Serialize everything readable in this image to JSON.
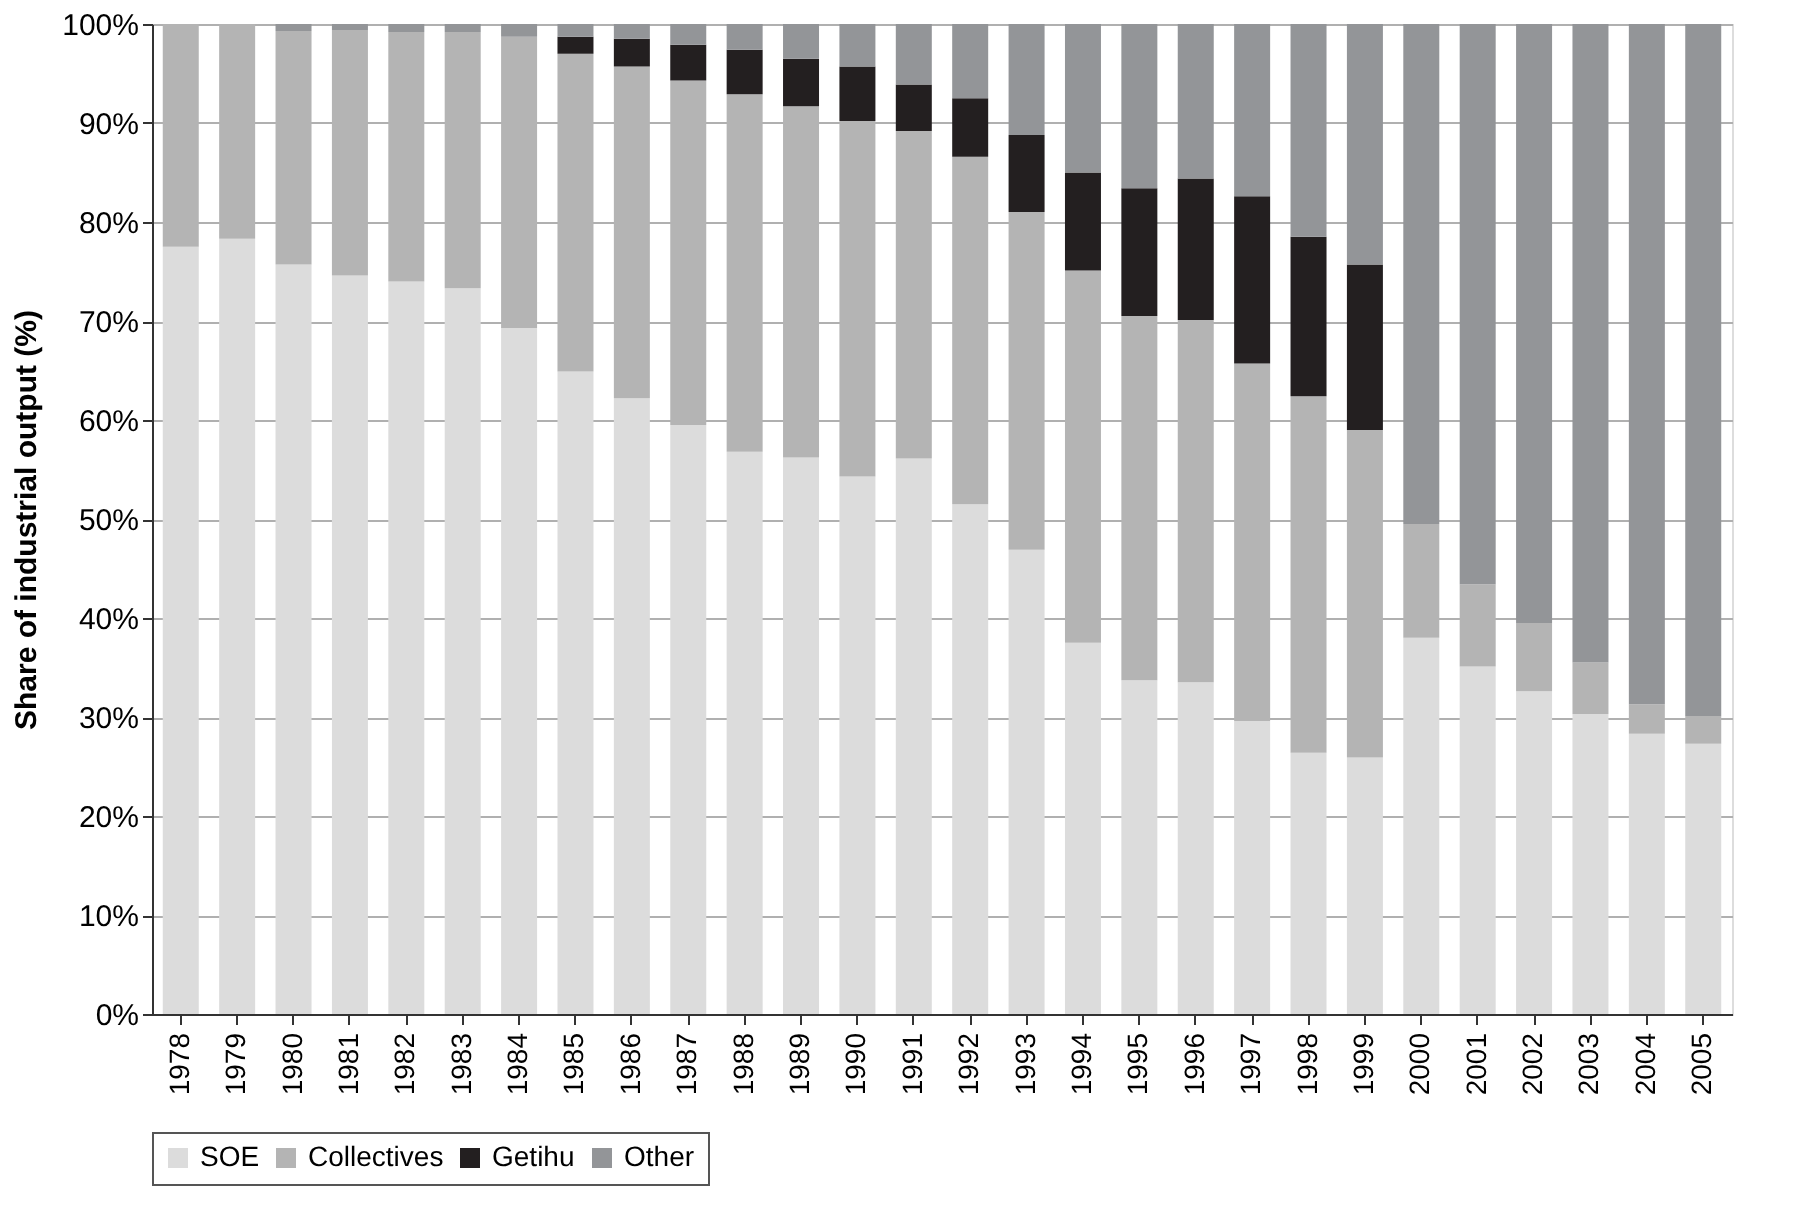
{
  "chart_data": {
    "type": "bar",
    "stacked": true,
    "ylabel": "Share of industrial output (%)",
    "categories": [
      "1978",
      "1979",
      "1980",
      "1981",
      "1982",
      "1983",
      "1984",
      "1985",
      "1986",
      "1987",
      "1988",
      "1989",
      "1990",
      "1991",
      "1992",
      "1993",
      "1994",
      "1995",
      "1996",
      "1997",
      "1998",
      "1999",
      "2000",
      "2001",
      "2002",
      "2003",
      "2004",
      "2005"
    ],
    "series": [
      {
        "name": "SOE",
        "color": "#dcdcdc",
        "values": [
          77.5,
          78.3,
          75.7,
          74.6,
          74.0,
          73.3,
          69.3,
          64.9,
          62.2,
          59.5,
          56.8,
          56.2,
          54.3,
          56.1,
          51.5,
          46.9,
          37.5,
          33.7,
          33.5,
          29.6,
          26.4,
          25.9,
          38.0,
          35.1,
          32.6,
          30.3,
          28.3,
          27.3
        ]
      },
      {
        "name": "Collectives",
        "color": "#b4b4b4",
        "values": [
          22.5,
          21.7,
          23.6,
          24.8,
          25.2,
          25.9,
          29.4,
          32.1,
          33.5,
          34.8,
          36.1,
          35.5,
          35.9,
          33.1,
          35.1,
          34.1,
          37.6,
          36.8,
          36.6,
          36.1,
          36.0,
          33.1,
          11.5,
          8.3,
          6.9,
          5.2,
          3.0,
          2.8
        ]
      },
      {
        "name": "Getihu",
        "color": "#231f20",
        "values": [
          null,
          null,
          null,
          null,
          null,
          null,
          null,
          1.7,
          2.8,
          3.6,
          4.5,
          4.8,
          5.5,
          4.7,
          5.9,
          7.8,
          9.9,
          12.9,
          14.3,
          16.9,
          16.1,
          16.7,
          null,
          null,
          null,
          null,
          null,
          null
        ]
      },
      {
        "name": "Other",
        "color": "#939598",
        "values": [
          null,
          null,
          0.7,
          0.6,
          0.8,
          0.8,
          1.3,
          1.3,
          1.5,
          2.1,
          2.6,
          3.5,
          4.3,
          6.1,
          7.5,
          11.2,
          15.0,
          16.6,
          15.6,
          17.4,
          21.5,
          24.3,
          50.5,
          56.6,
          60.5,
          64.5,
          68.7,
          69.9
        ]
      }
    ],
    "ylim": [
      0,
      100
    ],
    "yticks": [
      {
        "value": 0,
        "label": "0%"
      },
      {
        "value": 10,
        "label": "10%"
      },
      {
        "value": 20,
        "label": "20%"
      },
      {
        "value": 30,
        "label": "30%"
      },
      {
        "value": 40,
        "label": "40%"
      },
      {
        "value": 50,
        "label": "50%"
      },
      {
        "value": 60,
        "label": "60%"
      },
      {
        "value": 70,
        "label": "70%"
      },
      {
        "value": 80,
        "label": "80%"
      },
      {
        "value": 90,
        "label": "90%"
      },
      {
        "value": 100,
        "label": "100%"
      }
    ],
    "grid": "y",
    "legend": "bottom"
  }
}
